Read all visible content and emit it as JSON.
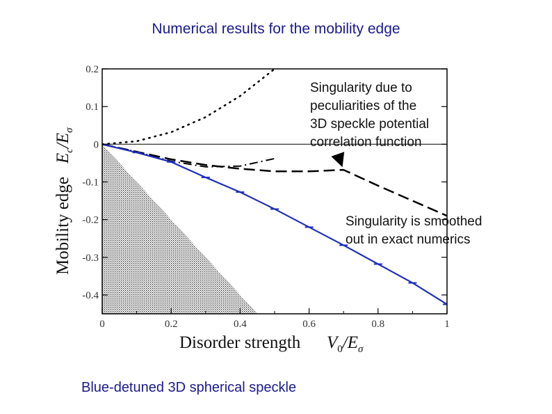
{
  "slide": {
    "title": "Numerical results for the mobility edge",
    "caption": "Blue-detuned 3D spherical speckle"
  },
  "chart_data": {
    "type": "line",
    "xlabel": "Disorder strength",
    "xlabel_math": "V0/Eσ",
    "ylabel": "Mobility edge",
    "ylabel_math": "Ec/Eσ",
    "xlim": [
      0,
      1
    ],
    "ylim": [
      -0.45,
      0.2
    ],
    "x_ticks": [
      "0",
      "0.2",
      "0.4",
      "0.6",
      "0.8",
      "1"
    ],
    "y_ticks": [
      "0.2",
      "0.1",
      "0",
      "-0.1",
      "-0.2",
      "-0.3",
      "-0.4"
    ],
    "series": [
      {
        "style": "dotted",
        "color": "#000000",
        "x": [
          0,
          0.1,
          0.2,
          0.3,
          0.4,
          0.5
        ],
        "y": [
          0,
          0.008,
          0.032,
          0.072,
          0.128,
          0.2
        ]
      },
      {
        "style": "dashed",
        "color": "#000000",
        "x": [
          0,
          0.1,
          0.2,
          0.3,
          0.4,
          0.5,
          0.6,
          0.7,
          0.8,
          0.9,
          1.0
        ],
        "y": [
          0,
          -0.02,
          -0.04,
          -0.055,
          -0.065,
          -0.072,
          -0.072,
          -0.068,
          -0.11,
          -0.15,
          -0.19
        ]
      },
      {
        "style": "dash-dot",
        "color": "#000000",
        "x": [
          0,
          0.1,
          0.2,
          0.3,
          0.4,
          0.5
        ],
        "y": [
          0,
          -0.02,
          -0.045,
          -0.06,
          -0.058,
          -0.038
        ]
      },
      {
        "style": "solid-errorbars",
        "color": "#1f2fbf",
        "x": [
          0,
          0.1,
          0.2,
          0.3,
          0.4,
          0.5,
          0.6,
          0.7,
          0.8,
          0.9,
          1.0
        ],
        "y": [
          0,
          -0.022,
          -0.047,
          -0.088,
          -0.127,
          -0.172,
          -0.22,
          -0.268,
          -0.318,
          -0.368,
          -0.425
        ]
      }
    ],
    "shaded_region": {
      "x": [
        0,
        0.45,
        0
      ],
      "y": [
        0,
        -0.45,
        -0.45
      ]
    },
    "annotations": [
      {
        "lines": [
          "Singularity due to",
          "peculiarities of the",
          "3D speckle potential",
          "correlation function"
        ],
        "arrow_to": [
          0.7,
          -0.065
        ]
      },
      {
        "lines": [
          "Singularity is smoothed",
          "out in exact numerics"
        ]
      }
    ]
  }
}
